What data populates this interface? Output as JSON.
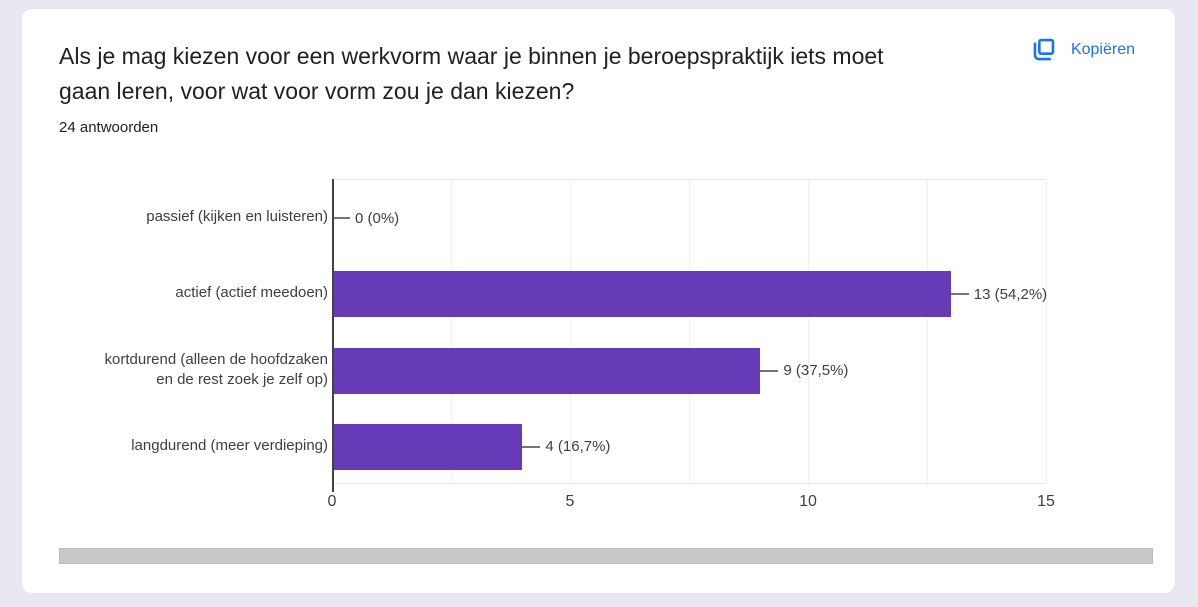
{
  "page": {
    "background_color": "#e9e7f2"
  },
  "card": {
    "title": "Als je mag kiezen voor een werkvorm waar je binnen je beroepspraktijk iets moet gaan leren, voor wat voor vorm zou je dan kiezen?",
    "title_lines": [
      "Als je mag kiezen voor een werkvorm waar je binnen je beroepspraktijk iets moet",
      "gaan leren, voor wat voor vorm zou je dan kiezen?"
    ],
    "answers_count_label": "24 antwoorden",
    "copy_button": {
      "label": "Kopiëren",
      "color": "#1a73e8",
      "icon": "copy-icon"
    }
  },
  "chart_data": {
    "type": "bar",
    "orientation": "horizontal",
    "title": "",
    "xlabel": "",
    "ylabel": "",
    "categories": [
      "passief (kijken en luisteren)",
      "actief (actief meedoen)",
      "kortdurend (alleen de hoofdzaken en de rest zoek je zelf op)",
      "langdurend (meer verdieping)"
    ],
    "categories_wrapped": [
      [
        "passief (kijken en luisteren)"
      ],
      [
        "actief (actief meedoen)"
      ],
      [
        "kortdurend (alleen de hoofdzaken",
        "en de rest zoek je zelf op)"
      ],
      [
        "langdurend (meer verdieping)"
      ]
    ],
    "values": [
      0,
      13,
      9,
      4
    ],
    "percentages": [
      0,
      54.2,
      37.5,
      16.7
    ],
    "value_labels": [
      "0 (0%)",
      "13 (54,2%)",
      "9 (37,5%)",
      "4 (16,7%)"
    ],
    "total_responses": 24,
    "x_ticks": [
      "0",
      "5",
      "10",
      "15"
    ],
    "xlim": [
      0,
      15
    ],
    "gridline_step": 2.5,
    "grid": "vertical",
    "legend_position": "none",
    "bar_color": "#673ab7"
  }
}
